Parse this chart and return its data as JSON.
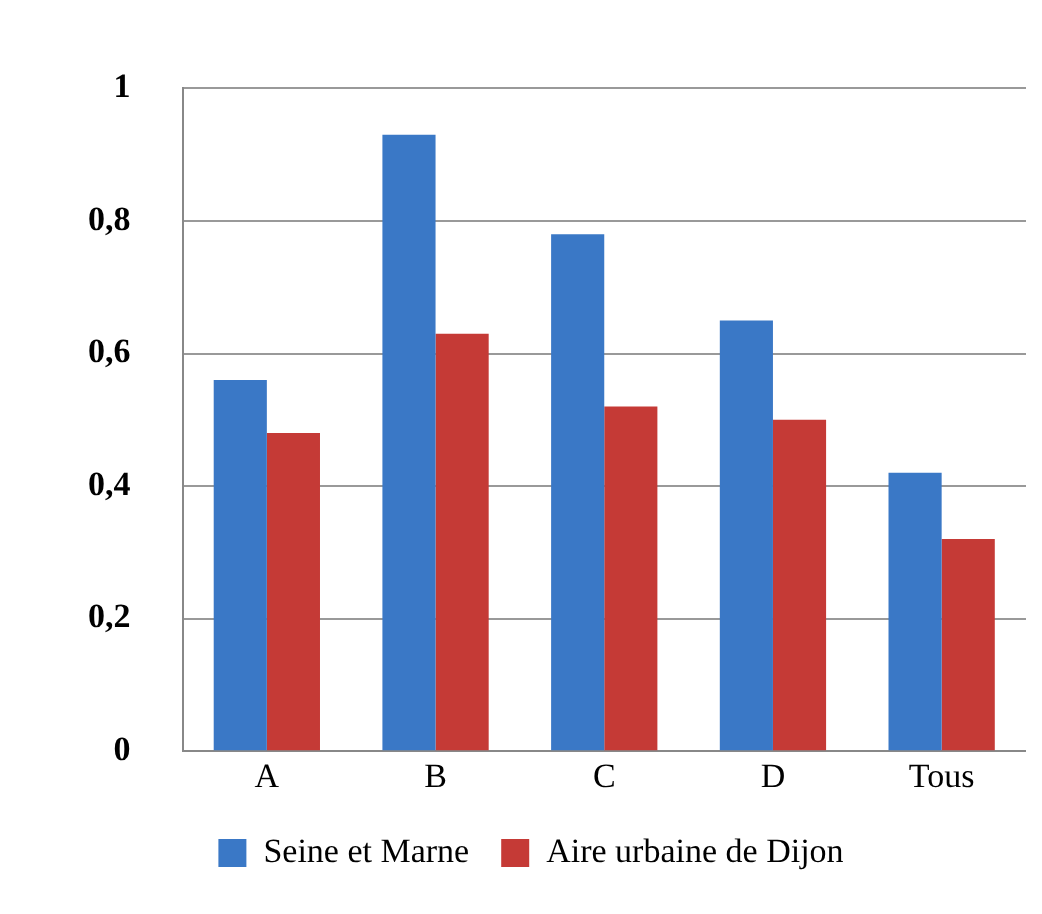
{
  "chart_data": {
    "type": "bar",
    "categories": [
      "A",
      "B",
      "C",
      "D",
      "Tous"
    ],
    "series": [
      {
        "name": "Seine et Marne",
        "color": "#3a78c6",
        "values": [
          0.56,
          0.93,
          0.78,
          0.65,
          0.42
        ]
      },
      {
        "name": "Aire urbaine de Dijon",
        "color": "#c53a36",
        "values": [
          0.48,
          0.63,
          0.52,
          0.5,
          0.32
        ]
      }
    ],
    "ylim": [
      0,
      1
    ],
    "yticks": [
      {
        "value": 0,
        "label": "0"
      },
      {
        "value": 0.2,
        "label": "0,2"
      },
      {
        "value": 0.4,
        "label": "0,4"
      },
      {
        "value": 0.6,
        "label": "0,6"
      },
      {
        "value": 0.8,
        "label": "0,8"
      },
      {
        "value": 1,
        "label": "1"
      }
    ],
    "grid": "y",
    "legend": "bottom"
  }
}
